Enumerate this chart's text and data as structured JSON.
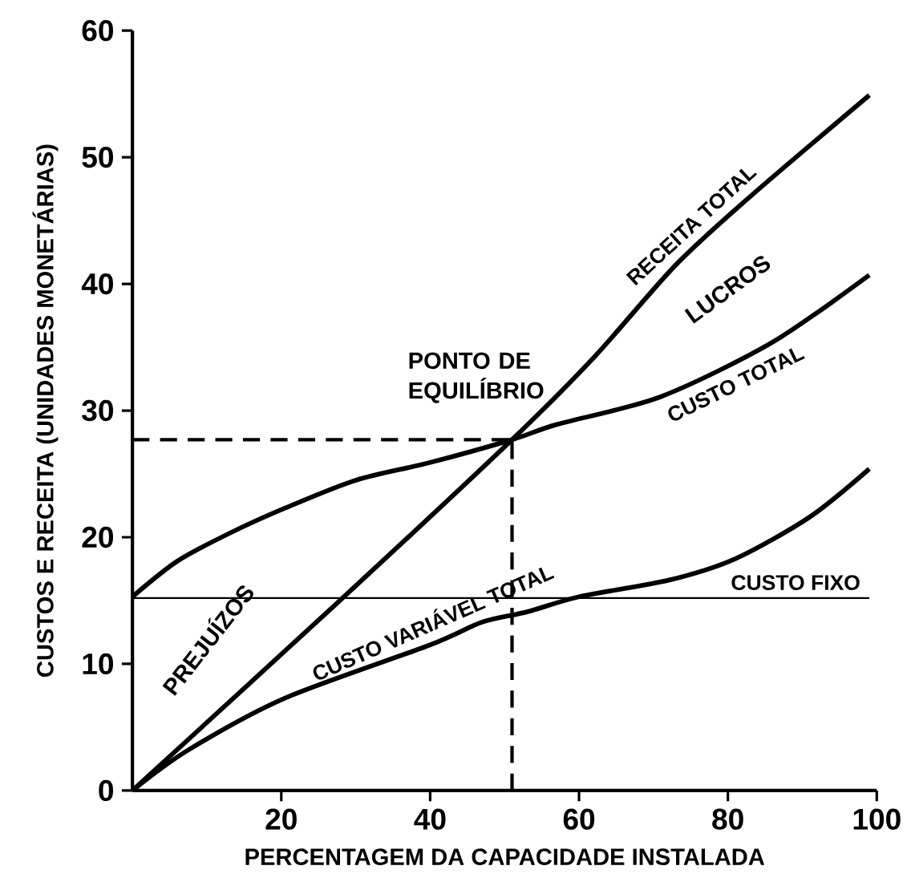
{
  "chart_data": {
    "type": "line",
    "xlabel": "PERCENTAGEM DA CAPACIDADE INSTALADA",
    "ylabel": "CUSTOS E RECEITA (UNIDADES MONETÁRIAS)",
    "xlim": [
      0,
      100
    ],
    "ylim": [
      0,
      60
    ],
    "xticks": [
      20,
      40,
      60,
      80,
      100
    ],
    "yticks": [
      0,
      10,
      20,
      30,
      40,
      50,
      60
    ],
    "grid": false,
    "legend": false,
    "marker": "none",
    "line_style": "solid",
    "series": [
      {
        "name": "RECEITA TOTAL",
        "color": "#000000",
        "x": [
          0,
          27.5,
          51,
          62,
          73,
          83,
          99
        ],
        "values": [
          0,
          14.8,
          27.7,
          34.2,
          41.5,
          46.9,
          54.9
        ]
      },
      {
        "name": "CUSTO TOTAL",
        "color": "#000000",
        "x": [
          0,
          6,
          13,
          20.5,
          30,
          40,
          51,
          57,
          71,
          86,
          99
        ],
        "values": [
          15.3,
          18.1,
          20.3,
          22.3,
          24.5,
          25.9,
          27.7,
          28.9,
          31.1,
          35.4,
          40.7
        ]
      },
      {
        "name": "CUSTO VARIÁVEL TOTAL",
        "color": "#000000",
        "x": [
          0,
          7.5,
          20.5,
          40,
          47,
          53,
          60,
          72,
          81,
          91,
          99
        ],
        "values": [
          0,
          3.2,
          7.3,
          11.5,
          13.3,
          14.1,
          15.3,
          16.6,
          18.3,
          21.6,
          25.4
        ]
      },
      {
        "name": "CUSTO FIXO",
        "color": "#000000",
        "x": [
          0,
          99
        ],
        "values": [
          15.2,
          15.2
        ]
      }
    ],
    "ref_lines": [
      {
        "axis": "y",
        "value": 27.7,
        "line_style": "dashed",
        "color": "#000000"
      },
      {
        "axis": "x",
        "value": 51,
        "line_style": "dashed",
        "color": "#000000"
      }
    ],
    "annotations": [
      "PONTO DE EQUILÍBRIO",
      "PREJUÍZOS",
      "LUCROS"
    ]
  }
}
